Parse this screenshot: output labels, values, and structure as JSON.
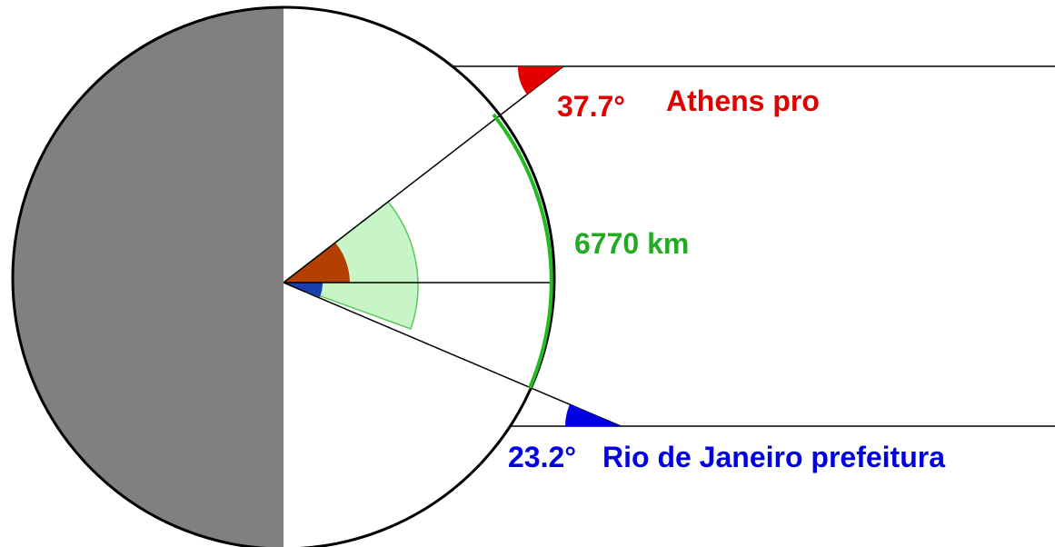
{
  "labels": {
    "athens_angle": "37.7°",
    "athens_name": "Athens pro",
    "arc_distance": "6770 km",
    "rio_angle": "23.2°",
    "rio_name": "Rio de Janeiro prefeitura"
  },
  "angles_deg": {
    "athens": 37.7,
    "rio": 23.2
  },
  "colors": {
    "athens": "#e00000",
    "rio": "#0000e0",
    "arc": "#22bb22",
    "night_side": "#808080",
    "central_wedge": "#c8f5c8",
    "athens_center_wedge": "#b34000",
    "rio_center_wedge": "#1a3fb0"
  }
}
